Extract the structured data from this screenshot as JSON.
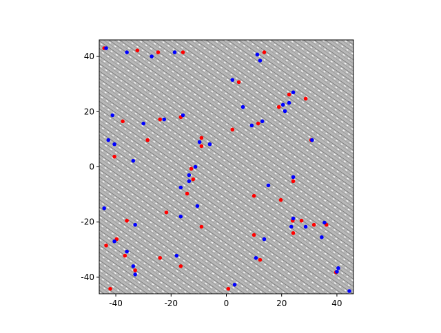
{
  "chart_data": {
    "type": "scatter",
    "xlim": [
      -46,
      46
    ],
    "ylim": [
      -46,
      46
    ],
    "xticks": [
      -40,
      -20,
      0,
      20,
      40
    ],
    "yticks": [
      -40,
      -20,
      0,
      20,
      40
    ],
    "series": [
      {
        "color": "#ff0000",
        "x": [
          -44.2,
          -32.2,
          -24.7,
          -15.7,
          13.7,
          4.5,
          22.7,
          28.7,
          19,
          -37.5,
          -24,
          -16.5,
          11.5,
          2.2,
          -28.5,
          -9,
          -9,
          30.7,
          -40.5,
          -12.7,
          -12,
          -14.2,
          10,
          19.7,
          -21.7,
          -9,
          -36,
          24,
          27.2,
          31.7,
          36.2,
          24.2,
          10,
          24.2,
          -39.7,
          -43.5,
          -36.7,
          -24,
          -16.5,
          -33,
          12.2,
          39.7,
          -42,
          0.7
        ],
        "values": [
          43,
          42.2,
          41.5,
          41.5,
          41.5,
          30.7,
          26.2,
          24.7,
          21.7,
          16.5,
          17.2,
          18,
          15.7,
          13.5,
          9.7,
          10.5,
          7.5,
          9.7,
          3.7,
          -0.7,
          -4.5,
          -9.7,
          -10.5,
          -12,
          -16.5,
          -21.7,
          -19.5,
          -19.5,
          -19.5,
          -21,
          -21,
          -24,
          -24.7,
          -5.2,
          -26.2,
          -28.5,
          -32.2,
          -33,
          -36,
          -37.5,
          -33.7,
          -38.2,
          -44.2,
          -44.2
        ]
      },
      {
        "color": "#0000ff",
        "x": [
          -43.5,
          -36,
          -27,
          -18.7,
          11.2,
          12.2,
          2.2,
          6,
          24.2,
          22.7,
          20.5,
          21.2,
          -41.2,
          -30,
          -22.5,
          -15.7,
          9.2,
          13,
          -42.7,
          -40.5,
          -9.7,
          -6,
          31,
          -33.7,
          -11.2,
          -13.5,
          -13.5,
          -16.5,
          15.2,
          24.2,
          -44.2,
          -16.5,
          -10.5,
          -33,
          23.5,
          28.7,
          35.5,
          24.2,
          13.7,
          34.5,
          -40.5,
          -36,
          -18,
          10.7,
          -33.7,
          -33,
          40.5,
          40,
          3,
          44.5
        ],
        "values": [
          43,
          41.5,
          40,
          41.5,
          40.7,
          38.5,
          31.5,
          21.7,
          27,
          23.2,
          22.5,
          20.2,
          18.7,
          15.7,
          17.2,
          18.7,
          15,
          16.5,
          9.7,
          8.2,
          9,
          8.2,
          9.7,
          2.2,
          0,
          -3,
          -5.2,
          -7.5,
          -6.7,
          -3.7,
          -15,
          -18,
          -14.2,
          -21,
          -21.7,
          -21.7,
          -20.2,
          -18.7,
          -26.2,
          -25.5,
          -27,
          -30.7,
          -32.2,
          -33,
          -36,
          -39,
          -36.7,
          -38,
          -42.7,
          -45
        ]
      }
    ]
  }
}
